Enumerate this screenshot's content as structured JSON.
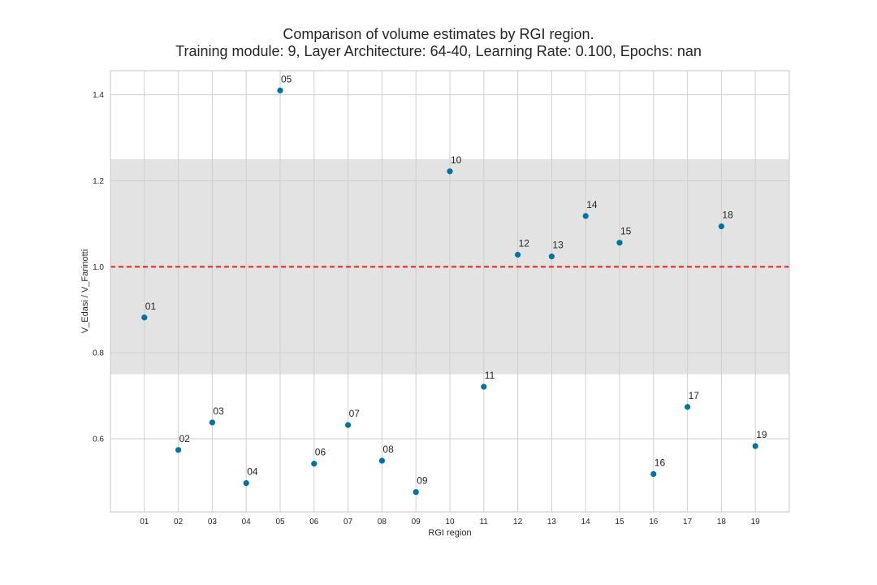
{
  "chart_data": {
    "type": "scatter",
    "title": "Comparison of volume estimates by RGI region.",
    "subtitle": "Training module: 9, Layer Architecture: 64-40, Learning Rate: 0.100, Epochs: nan",
    "xlabel": "RGI region",
    "ylabel": "V_Edasi / V_Farinotti",
    "categories": [
      "01",
      "02",
      "03",
      "04",
      "05",
      "06",
      "07",
      "08",
      "09",
      "10",
      "11",
      "12",
      "13",
      "14",
      "15",
      "16",
      "17",
      "18",
      "19"
    ],
    "values": [
      0.882,
      0.574,
      0.638,
      0.497,
      1.41,
      0.542,
      0.632,
      0.549,
      0.476,
      1.222,
      0.721,
      1.028,
      1.024,
      1.118,
      1.056,
      0.518,
      0.674,
      1.094,
      0.583
    ],
    "point_labels": [
      "01",
      "02",
      "03",
      "04",
      "05",
      "06",
      "07",
      "08",
      "09",
      "10",
      "11",
      "12",
      "13",
      "14",
      "15",
      "16",
      "17",
      "18",
      "19"
    ],
    "ylim": [
      0.43,
      1.456
    ],
    "yticks": [
      "0.6",
      "0.8",
      "1.0",
      "1.2",
      "1.4"
    ],
    "reference_line": 1.0,
    "shaded_band": [
      0.75,
      1.25
    ],
    "grid": true,
    "colors": {
      "points": "#0072a3",
      "reference_line": "#e8231f",
      "band": "#e3e3e3",
      "grid": "#cfcfcf",
      "axes": "#cfcfcf",
      "text": "#262626"
    }
  }
}
